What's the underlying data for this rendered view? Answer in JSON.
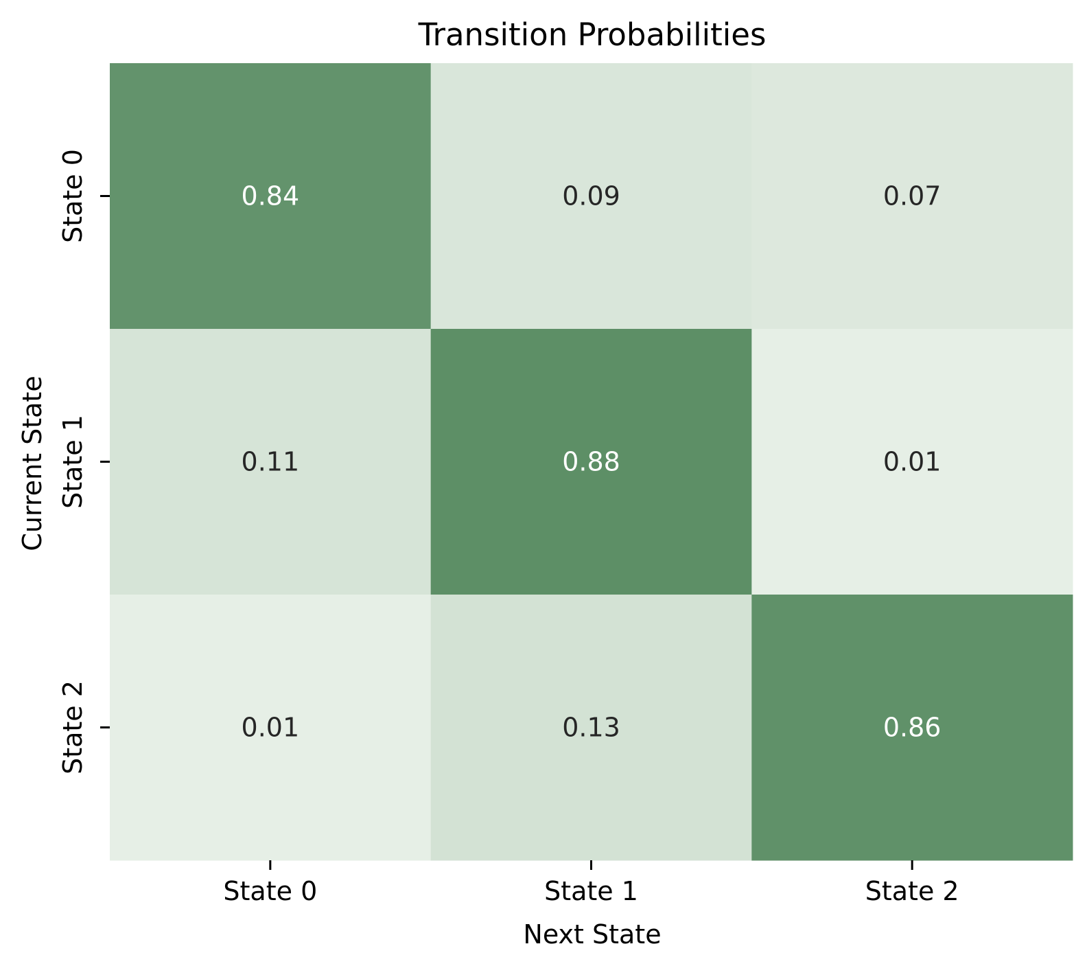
{
  "chart_data": {
    "type": "heatmap",
    "title": "Transition Probabilities",
    "xlabel": "Next State",
    "ylabel": "Current State",
    "x_categories": [
      "State 0",
      "State 1",
      "State 2"
    ],
    "y_categories": [
      "State 0",
      "State 1",
      "State 2"
    ],
    "values": [
      [
        0.84,
        0.09,
        0.07
      ],
      [
        0.11,
        0.88,
        0.01
      ],
      [
        0.01,
        0.13,
        0.86
      ]
    ],
    "value_labels": [
      [
        "0.84",
        "0.09",
        "0.07"
      ],
      [
        "0.11",
        "0.88",
        "0.01"
      ],
      [
        "0.01",
        "0.13",
        "0.86"
      ]
    ],
    "colorscale": {
      "low": "#e6efe6",
      "high": "#5d8f66"
    },
    "text_colors": {
      "on_dark": "#ffffff",
      "on_light": "#262626"
    },
    "colorbar": false,
    "grid": false,
    "legend": false
  }
}
